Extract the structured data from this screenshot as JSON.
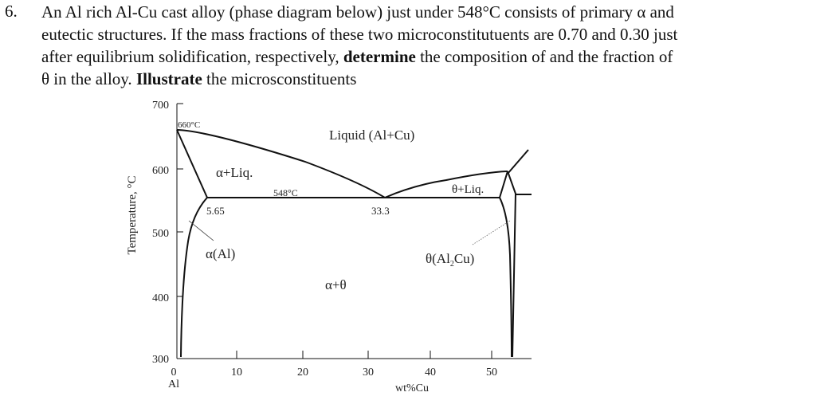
{
  "question": {
    "number": "6.",
    "line1": "An Al rich Al-Cu cast alloy (phase diagram below) just under 548°C consists of primary α and",
    "line2": "eutectic structures. If the mass fractions of these two microconstitutuents are 0.70 and 0.30 just",
    "line3_a": "after equilibrium solidification, respectively, ",
    "line3_bold": "determine",
    "line3_b": " the composition of and the fraction of",
    "line4_a": "θ in the alloy. ",
    "line4_bold": "Illustrate",
    "line4_b": " the microsconstituents"
  },
  "diagram": {
    "y_axis_label": "Temperature, °C",
    "x_axis_label": "wt%Cu",
    "x_origin_label": "Al",
    "y_ticks": [
      "700",
      "600",
      "500",
      "400",
      "300"
    ],
    "x_ticks": [
      "0",
      "10",
      "20",
      "30",
      "40",
      "50"
    ],
    "labels": {
      "melting_point": "660°C",
      "liquid": "Liquid (Al+Cu)",
      "alpha_liq": "α+Liq.",
      "eutectic_temp": "548°C",
      "theta_liq": "θ+Liq.",
      "alpha_max": "5.65",
      "eutectic_comp": "33.3",
      "alpha_phase": "α(Al)",
      "theta_phase": "θ(Al",
      "theta_sub": "2",
      "theta_phase_end": "Cu)",
      "alpha_theta": "α+θ"
    }
  }
}
